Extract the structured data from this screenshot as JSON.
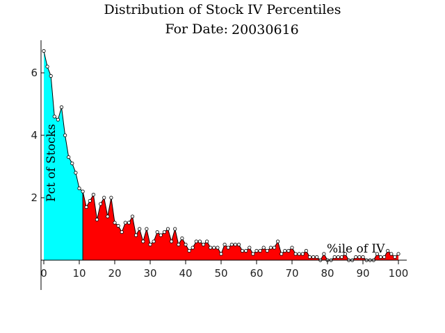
{
  "chart_data": {
    "type": "area",
    "title": "Distribution of Stock IV Percentiles",
    "subtitle_label": "For Date:",
    "subtitle_value": "20030616",
    "xlabel": "%ile of IV",
    "ylabel": "Pct of Stocks",
    "xlim": [
      0,
      100
    ],
    "ylim": [
      0,
      7
    ],
    "x_ticks": [
      0,
      10,
      20,
      30,
      40,
      50,
      60,
      70,
      80,
      90,
      100
    ],
    "y_ticks": [
      2,
      4,
      6
    ],
    "highlight_until_x": 11,
    "colors": {
      "highlight_fill": "#00ffff",
      "rest_fill": "#ff0000",
      "line": "#000000",
      "marker_fill": "#ffffff"
    },
    "x": [
      0,
      1,
      2,
      3,
      4,
      5,
      6,
      7,
      8,
      9,
      10,
      11,
      12,
      13,
      14,
      15,
      16,
      17,
      18,
      19,
      20,
      21,
      22,
      23,
      24,
      25,
      26,
      27,
      28,
      29,
      30,
      31,
      32,
      33,
      34,
      35,
      36,
      37,
      38,
      39,
      40,
      41,
      42,
      43,
      44,
      45,
      46,
      47,
      48,
      49,
      50,
      51,
      52,
      53,
      54,
      55,
      56,
      57,
      58,
      59,
      60,
      61,
      62,
      63,
      64,
      65,
      66,
      67,
      68,
      69,
      70,
      71,
      72,
      73,
      74,
      75,
      76,
      77,
      78,
      79,
      80,
      81,
      82,
      83,
      84,
      85,
      86,
      87,
      88,
      89,
      90,
      91,
      92,
      93,
      94,
      95,
      96,
      97,
      98,
      99,
      100
    ],
    "y": [
      6.7,
      6.2,
      5.9,
      4.6,
      4.5,
      4.9,
      4.0,
      3.3,
      3.1,
      2.8,
      2.3,
      2.2,
      1.7,
      1.9,
      2.1,
      1.3,
      1.8,
      2.0,
      1.4,
      2.0,
      1.2,
      1.1,
      0.9,
      1.2,
      1.2,
      1.4,
      0.8,
      1.0,
      0.6,
      1.0,
      0.5,
      0.6,
      0.9,
      0.8,
      0.9,
      1.0,
      0.6,
      1.0,
      0.5,
      0.7,
      0.5,
      0.3,
      0.4,
      0.6,
      0.6,
      0.5,
      0.6,
      0.4,
      0.4,
      0.4,
      0.2,
      0.5,
      0.4,
      0.5,
      0.5,
      0.5,
      0.3,
      0.3,
      0.4,
      0.2,
      0.3,
      0.3,
      0.4,
      0.3,
      0.4,
      0.4,
      0.6,
      0.2,
      0.3,
      0.3,
      0.4,
      0.2,
      0.2,
      0.2,
      0.3,
      0.1,
      0.1,
      0.1,
      0.0,
      0.2,
      0.0,
      0.0,
      0.1,
      0.1,
      0.1,
      0.2,
      0.0,
      0.0,
      0.1,
      0.1,
      0.1,
      0.0,
      0.0,
      0.0,
      0.2,
      0.1,
      0.1,
      0.3,
      0.2,
      0.1,
      0.2
    ]
  }
}
